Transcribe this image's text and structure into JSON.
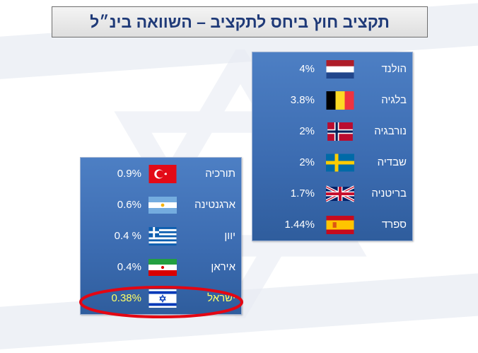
{
  "title": "תקציב חוץ ביחס לתקציב – השוואה בינ״ל",
  "panels": {
    "right": [
      {
        "country": "הולנד",
        "value": "4%",
        "flag": "netherlands-flag"
      },
      {
        "country": "בלגיה",
        "value": "3.8%",
        "flag": "belgium-flag"
      },
      {
        "country": "נורבגיה",
        "value": "2%",
        "flag": "norway-flag"
      },
      {
        "country": "שבדיה",
        "value": "2%",
        "flag": "sweden-flag"
      },
      {
        "country": "בריטניה",
        "value": "1.7%",
        "flag": "uk-flag"
      },
      {
        "country": "ספרד",
        "value": "1.44%",
        "flag": "spain-flag"
      }
    ],
    "left": [
      {
        "country": "תורכיה",
        "value": "0.9%",
        "flag": "turkey-flag"
      },
      {
        "country": "ארגנטינה",
        "value": "0.6%",
        "flag": "argentina-flag"
      },
      {
        "country": "יוון",
        "value": "0.4 %",
        "flag": "greece-flag"
      },
      {
        "country": "איראן",
        "value": "0.4%",
        "flag": "iran-flag"
      },
      {
        "country": "ישראל",
        "value": "0.38%",
        "flag": "israel-flag"
      }
    ]
  },
  "colors": {
    "panel": "#3b6bb0",
    "title_text": "#1f3a78",
    "highlight_text": "#ffff66",
    "highlight_oval": "#e30613"
  }
}
